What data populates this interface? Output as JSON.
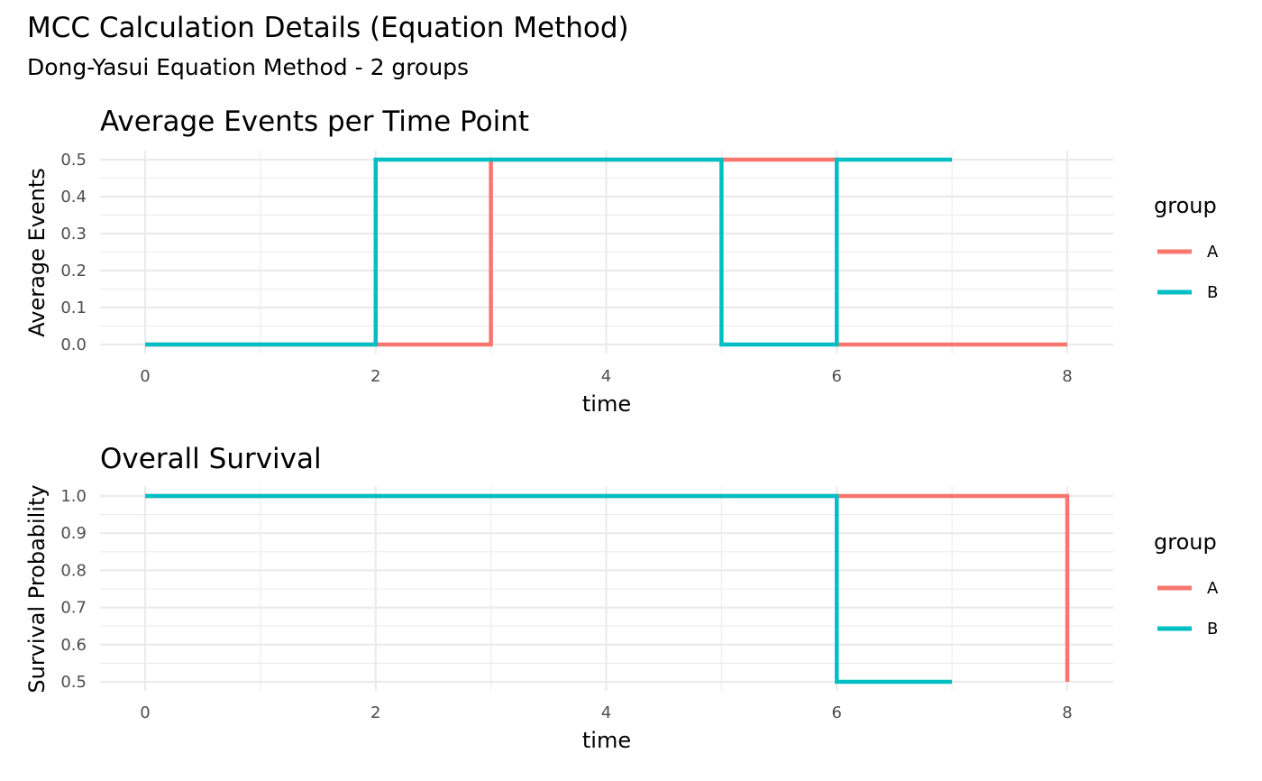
{
  "title": "MCC Calculation Details (Equation Method)",
  "subtitle": "Dong-Yasui Equation Method - 2 groups",
  "colors": {
    "A": "#F8766D",
    "B": "#00BFC4",
    "grid": "#EBEBEB"
  },
  "chart_data": [
    {
      "type": "line",
      "step": true,
      "title": "Average Events per Time Point",
      "xlabel": "time",
      "ylabel": "Average Events",
      "xlim": [
        -0.3,
        8.4
      ],
      "ylim": [
        0.0,
        0.5
      ],
      "x_ticks": [
        0,
        2,
        4,
        6,
        8
      ],
      "y_ticks": [
        0.0,
        0.1,
        0.2,
        0.3,
        0.4,
        0.5
      ],
      "x_tick_labels": [
        "0",
        "2",
        "4",
        "6",
        "8"
      ],
      "y_tick_labels": [
        "0.0",
        "0.1",
        "0.2",
        "0.3",
        "0.4",
        "0.5"
      ],
      "grid": true,
      "legend": {
        "title": "group",
        "position": "right"
      },
      "series": [
        {
          "name": "A",
          "x": [
            0,
            2,
            3,
            3,
            6,
            8
          ],
          "y": [
            0,
            0,
            0,
            0.5,
            0,
            0
          ]
        },
        {
          "name": "B",
          "x": [
            0,
            2,
            5,
            6,
            7
          ],
          "y": [
            0,
            0.5,
            0,
            0.5,
            0.5
          ]
        }
      ]
    },
    {
      "type": "line",
      "step": true,
      "title": "Overall Survival",
      "xlabel": "time",
      "ylabel": "Survival Probability",
      "xlim": [
        -0.3,
        8.4
      ],
      "ylim": [
        0.5,
        1.0
      ],
      "x_ticks": [
        0,
        2,
        4,
        6,
        8
      ],
      "y_ticks": [
        0.5,
        0.6,
        0.7,
        0.8,
        0.9,
        1.0
      ],
      "x_tick_labels": [
        "0",
        "2",
        "4",
        "6",
        "8"
      ],
      "y_tick_labels": [
        "0.5",
        "0.6",
        "0.7",
        "0.8",
        "0.9",
        "1.0"
      ],
      "grid": true,
      "legend": {
        "title": "group",
        "position": "right"
      },
      "series": [
        {
          "name": "A",
          "x": [
            0,
            8
          ],
          "y": [
            1.0,
            0.5
          ]
        },
        {
          "name": "B",
          "x": [
            0,
            6,
            7
          ],
          "y": [
            1.0,
            0.5,
            0.5
          ]
        }
      ]
    }
  ]
}
